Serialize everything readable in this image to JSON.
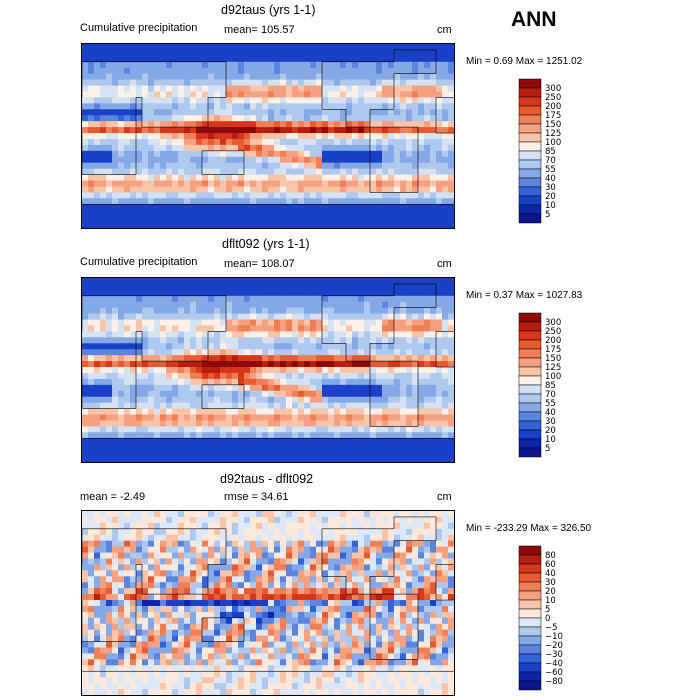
{
  "season": "ANN",
  "panels": [
    {
      "id": "p1",
      "title": "d92taus (yrs 1-1)",
      "left_label": "Cumulative precipitation",
      "mid_label": "mean= 105.57",
      "units": "cm",
      "minmax": "Min =    0.69 Max = 1251.02",
      "kind": "abs"
    },
    {
      "id": "p2",
      "title": "dflt092 (yrs 1-1)",
      "left_label": "Cumulative precipitation",
      "mid_label": "mean= 108.07",
      "units": "cm",
      "minmax": "Min =    0.37 Max = 1027.83",
      "kind": "abs"
    },
    {
      "id": "p3",
      "title": "d92taus - dflt092",
      "left_label": "mean =   -2.49",
      "mid_label": "rmse =   34.61",
      "units": "cm",
      "minmax": "Min = -233.29 Max =  326.50",
      "kind": "diff"
    }
  ],
  "colorbars": {
    "abs": {
      "levels": [
        "300",
        "250",
        "200",
        "175",
        "150",
        "125",
        "100",
        "85",
        "70",
        "55",
        "40",
        "30",
        "20",
        "10",
        "5"
      ],
      "colors": [
        "#8c0a0a",
        "#b81e10",
        "#d8361a",
        "#e85a32",
        "#f07e56",
        "#f5a080",
        "#f9c4a8",
        "#fdf0e6",
        "#d4e2f4",
        "#afc8ee",
        "#85a8e6",
        "#5a84e0",
        "#3462d8",
        "#1a40c8",
        "#0c24a8",
        "#0a148c"
      ]
    },
    "diff": {
      "levels": [
        "80",
        "60",
        "40",
        "30",
        "20",
        "10",
        "5",
        "0",
        "−5",
        "−10",
        "−20",
        "−30",
        "−40",
        "−60",
        "−80"
      ],
      "colors": [
        "#8c0a0a",
        "#b81e10",
        "#d8361a",
        "#e85a32",
        "#f07e56",
        "#f5a080",
        "#f9c4a8",
        "#fde8dc",
        "#dde8f6",
        "#afc8ee",
        "#85a8e6",
        "#5a84e0",
        "#3462d8",
        "#1a40c8",
        "#0c24a8",
        "#0a148c"
      ]
    }
  }
}
